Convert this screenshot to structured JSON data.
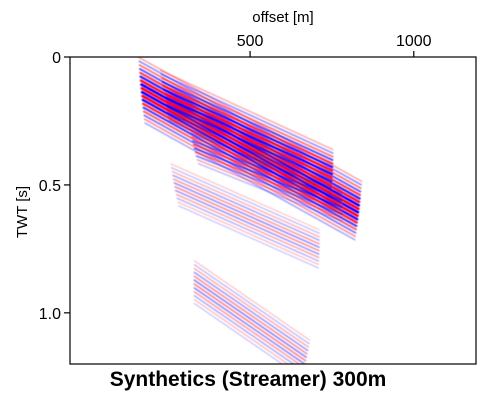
{
  "chart_data": {
    "type": "heatmap",
    "title": "Synthetics (Streamer) 300m",
    "xlabel": "offset [m]",
    "ylabel": "TWT [s]",
    "x_axis_position": "top",
    "xlim": [
      -50,
      1190
    ],
    "ylim": [
      1.2,
      0.0
    ],
    "x_ticks": [
      500,
      1000
    ],
    "x_tick_labels": [
      "500",
      "1000"
    ],
    "y_ticks": [
      0,
      0.5,
      1.0
    ],
    "y_tick_labels": [
      "0",
      "0.5",
      "1.0"
    ],
    "colormap": {
      "positive": "#ff0000",
      "negative": "#0000ff",
      "zero": "#ffffff"
    },
    "grid": false,
    "events": [
      {
        "name": "",
        "x_start": 170,
        "t_start": 0.13,
        "x_end": 830,
        "t_end": 0.6,
        "strength": 1.0,
        "cycles": 9
      },
      {
        "name": "",
        "x_start": 240,
        "t_start": 0.15,
        "x_end": 750,
        "t_end": 0.45,
        "strength": 0.85,
        "cycles": 7
      },
      {
        "name": "",
        "x_start": 330,
        "t_start": 0.35,
        "x_end": 780,
        "t_end": 0.58,
        "strength": 0.55,
        "cycles": 5
      },
      {
        "name": "",
        "x_start": 270,
        "t_start": 0.5,
        "x_end": 710,
        "t_end": 0.75,
        "strength": 0.3,
        "cycles": 6
      },
      {
        "name": "",
        "x_start": 330,
        "t_start": 0.88,
        "x_end": 670,
        "t_end": 1.18,
        "strength": 0.35,
        "cycles": 6
      }
    ]
  }
}
